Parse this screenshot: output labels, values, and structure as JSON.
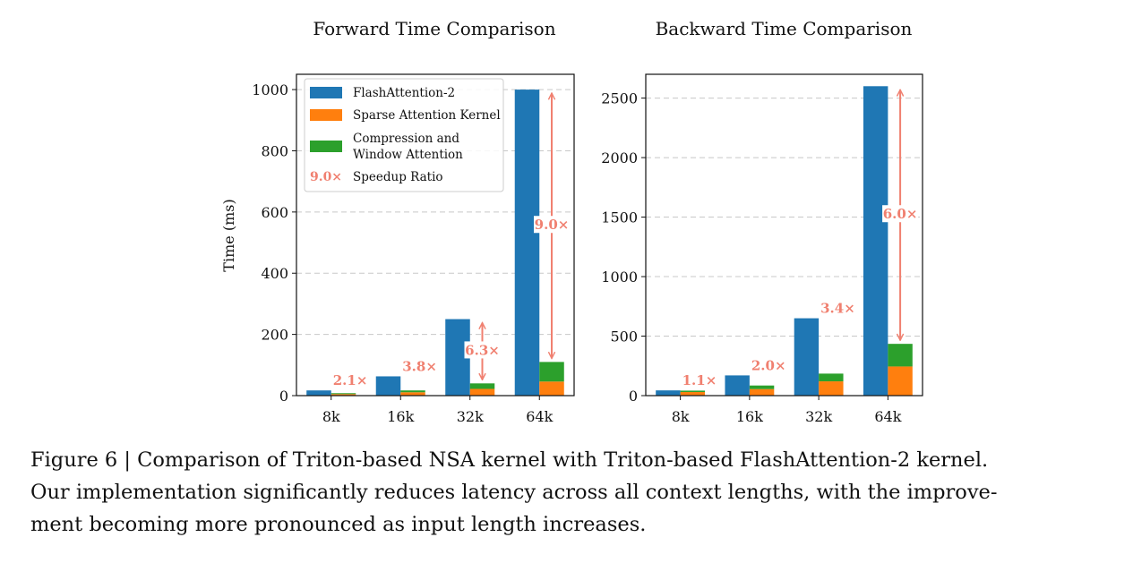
{
  "chart_data": [
    {
      "type": "bar",
      "title": "Forward Time Comparison",
      "xlabel": "",
      "ylabel": "Time (ms)",
      "ylim": [
        0,
        1050
      ],
      "yticks": [
        0,
        200,
        400,
        600,
        800,
        1000
      ],
      "categories": [
        "8k",
        "16k",
        "32k",
        "64k"
      ],
      "series": [
        {
          "name": "FlashAttention-2",
          "values": [
            17,
            63,
            250,
            1000
          ]
        },
        {
          "name": "Sparse Attention Kernel",
          "values": [
            5,
            11,
            22,
            46
          ]
        },
        {
          "name": "Compression and Window Attention",
          "values": [
            3,
            6,
            18,
            64
          ]
        }
      ],
      "speedup": [
        "2.1×",
        "3.8×",
        "6.3×",
        "9.0×"
      ],
      "grid": true,
      "legend_position": "top-left"
    },
    {
      "type": "bar",
      "title": "Backward Time Comparison",
      "xlabel": "",
      "ylabel": "",
      "ylim": [
        0,
        2700
      ],
      "yticks": [
        0,
        500,
        1000,
        1500,
        2000,
        2500
      ],
      "categories": [
        "8k",
        "16k",
        "32k",
        "64k"
      ],
      "series": [
        {
          "name": "FlashAttention-2",
          "values": [
            44,
            170,
            650,
            2600
          ]
        },
        {
          "name": "Sparse Attention Kernel",
          "values": [
            30,
            55,
            120,
            245
          ]
        },
        {
          "name": "Compression and Window Attention",
          "values": [
            12,
            30,
            65,
            190
          ]
        }
      ],
      "speedup": [
        "1.1×",
        "2.0×",
        "3.4×",
        "6.0×"
      ],
      "grid": true
    }
  ],
  "legend": {
    "items": [
      "FlashAttention-2",
      "Sparse Attention Kernel",
      "Compression and Window Attention",
      "Speedup Ratio"
    ],
    "compression_line1": "Compression and",
    "compression_line2": "Window Attention",
    "speedup_sample": "9.0×"
  },
  "colors": {
    "flash": "#1f77b4",
    "sparse": "#ff7f0e",
    "compression": "#2ca02c",
    "speedup": "#f08070"
  },
  "caption": {
    "line1": "Figure 6 | Comparison of Triton-based NSA kernel with Triton-based FlashAttention-2 kernel.",
    "line2": "Our implementation significantly reduces latency across all context lengths, with the improve-",
    "line3": "ment becoming more pronounced as input length increases."
  }
}
